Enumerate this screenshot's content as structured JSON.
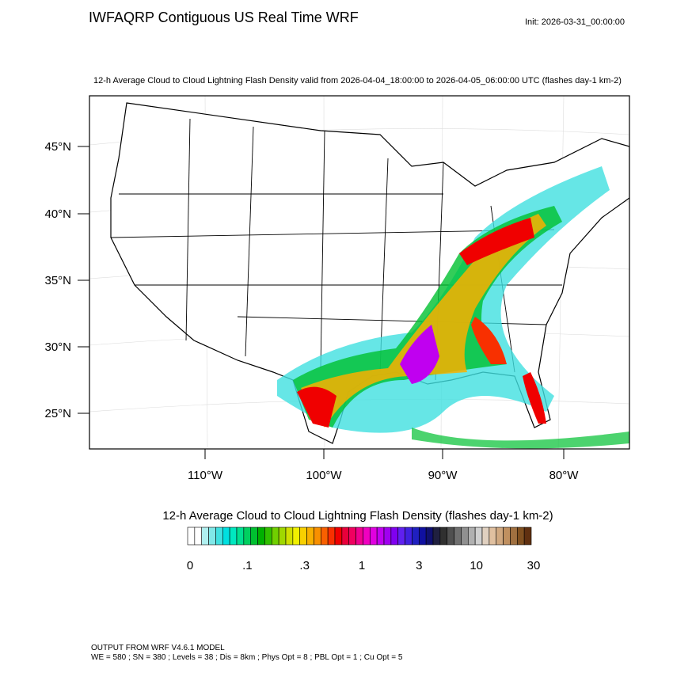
{
  "header": {
    "title": "IWFAQRP Contiguous US Real Time WRF",
    "init": "Init: 2026-03-31_00:00:00"
  },
  "map": {
    "subtitle": "12-h Average Cloud to Cloud Lightning Flash Density valid from 2026-04-04_18:00:00 to 2026-04-05_06:00:00 UTC   (flashes day-1 km-2)",
    "lat_labels": [
      "45°N",
      "40°N",
      "35°N",
      "30°N",
      "25°N"
    ],
    "lon_labels": [
      "110°W",
      "100°W",
      "90°W",
      "80°W"
    ]
  },
  "colorbar": {
    "title": "12-h Average Cloud to Cloud Lightning Flash Density  (flashes day-1 km-2)",
    "labels": [
      "0",
      ".1",
      ".3",
      "1",
      "3",
      "10",
      "30"
    ],
    "colors": [
      "#ffffff",
      "#ffffff",
      "#b0f0f0",
      "#80e8e8",
      "#40e0e0",
      "#00e0e0",
      "#00e8c0",
      "#00e090",
      "#00d060",
      "#00c030",
      "#00b000",
      "#30c000",
      "#70d000",
      "#a0d800",
      "#d0e000",
      "#f0f000",
      "#f8d000",
      "#f8b000",
      "#f89000",
      "#f86000",
      "#f83000",
      "#f00000",
      "#e8003a",
      "#f00060",
      "#f00090",
      "#f000c0",
      "#e000e0",
      "#c000f0",
      "#a000f0",
      "#8000f0",
      "#6020f0",
      "#4020e0",
      "#2020c0",
      "#1010a0",
      "#101070",
      "#202040",
      "#303030",
      "#505050",
      "#707070",
      "#909090",
      "#b0b0b0",
      "#d0d0d0",
      "#e0d0c0",
      "#e0c0a0",
      "#d0a880",
      "#c09060",
      "#a07040",
      "#805020",
      "#603010"
    ]
  },
  "footer": {
    "line1": "OUTPUT FROM WRF V4.6.1 MODEL",
    "line2": "WE = 580 ; SN = 380 ; Levels = 38 ; Dis = 8km ; Phys Opt = 8 ; PBL Opt = 1 ; Cu Opt = 5"
  }
}
